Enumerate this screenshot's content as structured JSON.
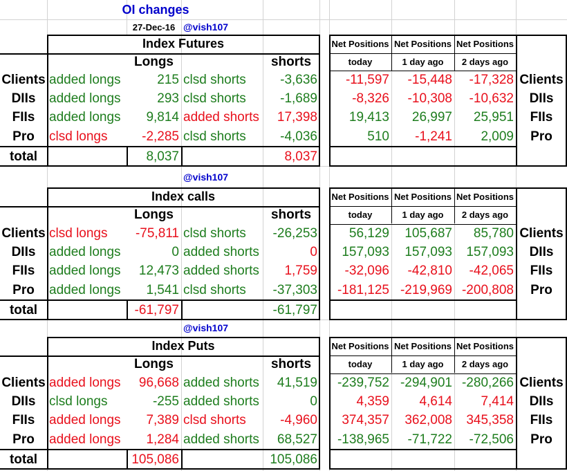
{
  "header": {
    "title": "OI changes",
    "date": "27-Dec-16",
    "handle": "@vish107"
  },
  "net_headers": [
    "Net Positions",
    "Net Positions",
    "Net Positions"
  ],
  "net_sub": [
    "today",
    "1 day ago",
    "2 days ago"
  ],
  "col_labels": {
    "longs": "Longs",
    "shorts": "shorts"
  },
  "sections": [
    {
      "title": "Index Futures",
      "rows": [
        {
          "name": "Clients",
          "long_action": "added longs",
          "long_val": "215",
          "short_action": "clsd shorts",
          "short_val": "-3,636",
          "net": [
            "-11,597",
            "-15,448",
            "-17,328"
          ],
          "side": "Clients"
        },
        {
          "name": "DIIs",
          "long_action": "added longs",
          "long_val": "293",
          "short_action": "clsd shorts",
          "short_val": "-1,689",
          "net": [
            "-8,326",
            "-10,308",
            "-10,632"
          ],
          "side": "DIIs"
        },
        {
          "name": "FIIs",
          "long_action": "added longs",
          "long_val": "9,814",
          "short_action": "added shorts",
          "short_val": "17,398",
          "net": [
            "19,413",
            "26,997",
            "25,951"
          ],
          "side": "FIIs"
        },
        {
          "name": "Pro",
          "long_action": "clsd longs",
          "long_val": "-2,285",
          "short_action": "clsd shorts",
          "short_val": "-4,036",
          "net": [
            "510",
            "-1,241",
            "2,009"
          ],
          "side": "Pro"
        }
      ],
      "total": {
        "label": "total",
        "long": "8,037",
        "short": "8,037"
      }
    },
    {
      "title": "Index calls",
      "handle": "@vish107",
      "rows": [
        {
          "name": "Clients",
          "long_action": "clsd longs",
          "long_val": "-75,811",
          "short_action": "clsd shorts",
          "short_val": "-26,253",
          "net": [
            "56,129",
            "105,687",
            "85,780"
          ],
          "side": "Clients"
        },
        {
          "name": "DIIs",
          "long_action": "added longs",
          "long_val": "0",
          "short_action": "added shorts",
          "short_val": "0",
          "net": [
            "157,093",
            "157,093",
            "157,093"
          ],
          "side": "DIIs"
        },
        {
          "name": "FIIs",
          "long_action": "added longs",
          "long_val": "12,473",
          "short_action": "added shorts",
          "short_val": "1,759",
          "net": [
            "-32,096",
            "-42,810",
            "-42,065"
          ],
          "side": "FIIs"
        },
        {
          "name": "Pro",
          "long_action": "added longs",
          "long_val": "1,541",
          "short_action": "clsd shorts",
          "short_val": "-37,303",
          "net": [
            "-181,125",
            "-219,969",
            "-200,808"
          ],
          "side": "Pro"
        }
      ],
      "total": {
        "label": "total",
        "long": "-61,797",
        "short": "-61,797"
      }
    },
    {
      "title": "Index Puts",
      "handle": "@vish107",
      "rows": [
        {
          "name": "Clients",
          "long_action": "added longs",
          "long_val": "96,668",
          "short_action": "added shorts",
          "short_val": "41,519",
          "net": [
            "-239,752",
            "-294,901",
            "-280,266"
          ],
          "side": "Clients"
        },
        {
          "name": "DIIs",
          "long_action": "clsd longs",
          "long_val": "-255",
          "short_action": "added shorts",
          "short_val": "0",
          "net": [
            "4,359",
            "4,614",
            "7,414"
          ],
          "side": "DIIs"
        },
        {
          "name": "FIIs",
          "long_action": "added longs",
          "long_val": "7,389",
          "short_action": "clsd shorts",
          "short_val": "-4,960",
          "net": [
            "374,357",
            "362,008",
            "345,358"
          ],
          "side": "FIIs"
        },
        {
          "name": "Pro",
          "long_action": "added longs",
          "long_val": "1,284",
          "short_action": "added shorts",
          "short_val": "68,527",
          "net": [
            "-138,965",
            "-71,722",
            "-72,506"
          ],
          "side": "Pro"
        }
      ],
      "total": {
        "label": "total",
        "long": "105,086",
        "short": "105,086"
      }
    }
  ],
  "colors": {
    "futures": {
      "long_action": [
        "g",
        "g",
        "g",
        "red"
      ],
      "long_val": [
        "g",
        "g",
        "g",
        "red"
      ],
      "short_action": [
        "g",
        "g",
        "red",
        "g"
      ],
      "short_val": [
        "g",
        "g",
        "red",
        "g"
      ],
      "net": [
        [
          "red",
          "red",
          "red"
        ],
        [
          "red",
          "red",
          "red"
        ],
        [
          "g",
          "g",
          "g"
        ],
        [
          "g",
          "red",
          "g"
        ]
      ],
      "total": [
        "g",
        "red"
      ]
    },
    "calls": {
      "long_action": [
        "red",
        "g",
        "g",
        "g"
      ],
      "long_val": [
        "red",
        "g",
        "g",
        "g"
      ],
      "short_action": [
        "g",
        "g",
        "g",
        "g"
      ],
      "short_val": [
        "g",
        "red",
        "red",
        "g"
      ],
      "net": [
        [
          "g",
          "g",
          "g"
        ],
        [
          "g",
          "g",
          "g"
        ],
        [
          "red",
          "red",
          "red"
        ],
        [
          "red",
          "red",
          "red"
        ]
      ],
      "total": [
        "red",
        "g"
      ]
    },
    "puts": {
      "long_action": [
        "red",
        "g",
        "red",
        "red"
      ],
      "long_val": [
        "red",
        "g",
        "red",
        "red"
      ],
      "short_action": [
        "g",
        "g",
        "red",
        "g"
      ],
      "short_val": [
        "g",
        "g",
        "red",
        "g"
      ],
      "net": [
        [
          "g",
          "g",
          "g"
        ],
        [
          "red",
          "red",
          "red"
        ],
        [
          "red",
          "red",
          "red"
        ],
        [
          "g",
          "g",
          "g"
        ]
      ],
      "total": [
        "red",
        "g"
      ]
    }
  }
}
